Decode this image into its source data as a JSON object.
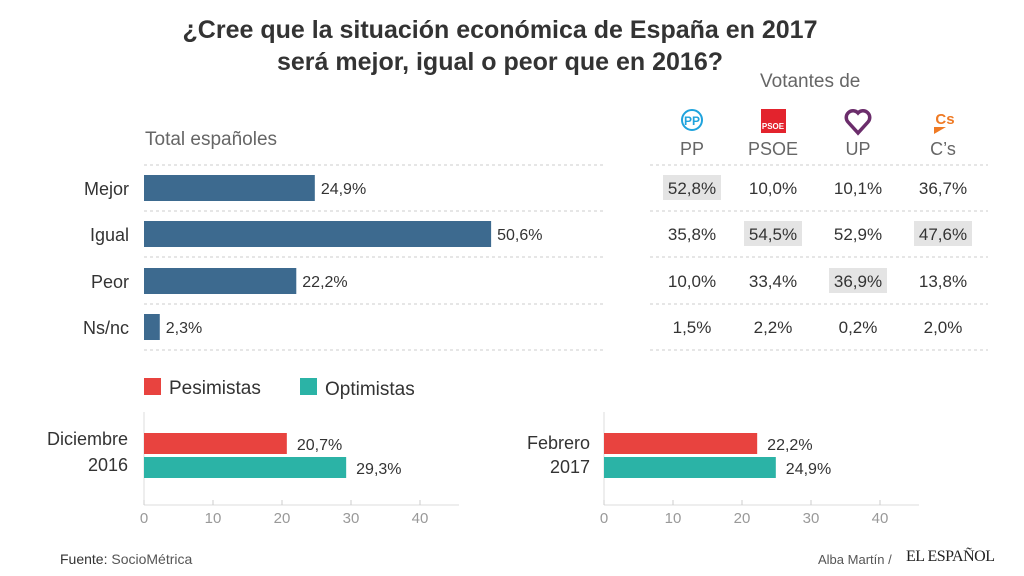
{
  "title_lines": [
    "¿Cree que la situación económica de España en 2017",
    "será mejor, igual o peor que en 2016?"
  ],
  "total_label": "Total españoles",
  "votantes_label": "Votantes de",
  "source_label": "Fuente:",
  "source": "SocioMétrica",
  "author": "Alba Martín /",
  "brand": "EL ESPAÑOL",
  "colors": {
    "bar": "#3d6a8f",
    "pesimistas": "#e8433f",
    "optimistas": "#2bb3a6",
    "highlight": "#e4e4e4"
  },
  "chart_data": [
    {
      "type": "bar",
      "orientation": "horizontal",
      "categories": [
        "Mejor",
        "Igual",
        "Peor",
        "Ns/nc"
      ],
      "values": [
        24.9,
        50.6,
        22.2,
        2.3
      ],
      "value_labels": [
        "24,9%",
        "50,6%",
        "22,2%",
        "2,3%"
      ],
      "title": "Total españoles"
    },
    {
      "type": "table",
      "title": "Votantes de",
      "columns": [
        {
          "name": "PP",
          "icon": "pp-logo",
          "color": "#1fa3dd"
        },
        {
          "name": "PSOE",
          "icon": "psoe-logo",
          "color": "#e3232d"
        },
        {
          "name": "UP",
          "icon": "up-heart-logo",
          "color": "#6b2d6b"
        },
        {
          "name": "C’s",
          "icon": "cs-logo",
          "color": "#ef7a24"
        }
      ],
      "rows": [
        [
          "52,8%",
          "10,0%",
          "10,1%",
          "36,7%"
        ],
        [
          "35,8%",
          "54,5%",
          "52,9%",
          "47,6%"
        ],
        [
          "10,0%",
          "33,4%",
          "36,9%",
          "13,8%"
        ],
        [
          "1,5%",
          "2,2%",
          "0,2%",
          "2,0%"
        ]
      ],
      "highlighted": [
        [
          0,
          0
        ],
        [
          1,
          1
        ],
        [
          1,
          3
        ],
        [
          2,
          2
        ]
      ]
    },
    {
      "type": "bar",
      "orientation": "horizontal",
      "legend": [
        "Pesimistas",
        "Optimistas"
      ],
      "legend_placement": "top-left",
      "groups": [
        {
          "label": [
            "Diciembre",
            "2016"
          ],
          "values": [
            20.7,
            29.3
          ],
          "value_labels": [
            "20,7%",
            "29,3%"
          ]
        },
        {
          "label": [
            "Febrero",
            "2017"
          ],
          "values": [
            22.2,
            24.9
          ],
          "value_labels": [
            "22,2%",
            "24,9%"
          ]
        }
      ],
      "xlim": [
        0,
        45
      ],
      "xticks": [
        "0",
        "10",
        "20",
        "30",
        "40"
      ]
    }
  ]
}
